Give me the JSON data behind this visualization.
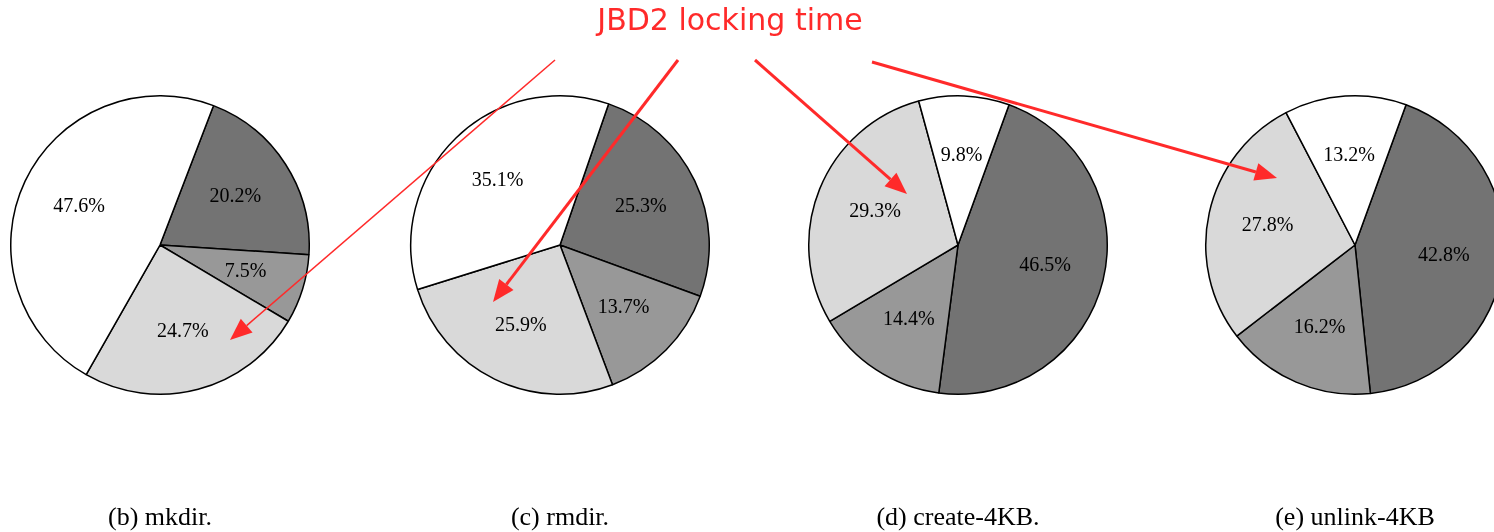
{
  "chart_data": [
    {
      "type": "pie",
      "title": "(b) mkdir.",
      "categories": [
        null,
        null,
        null,
        null
      ],
      "values": [
        20.2,
        7.5,
        24.7,
        47.6
      ],
      "colors": [
        "#737373",
        "#989898",
        "#d9d9d9",
        "#ffffff"
      ],
      "value_labels": [
        "20.2%",
        "7.5%",
        "24.7%",
        "47.6%"
      ],
      "annotations": [
        "JBD2 locking time"
      ]
    },
    {
      "type": "pie",
      "title": "(c) rmdir.",
      "categories": [
        null,
        null,
        null,
        null
      ],
      "values": [
        25.3,
        13.7,
        25.9,
        35.1
      ],
      "colors": [
        "#737373",
        "#989898",
        "#d9d9d9",
        "#ffffff"
      ],
      "value_labels": [
        "25.3%",
        "13.7%",
        "25.9%",
        "35.1%"
      ]
    },
    {
      "type": "pie",
      "title": "(d) create-4KB.",
      "categories": [
        null,
        null,
        null,
        null
      ],
      "values": [
        46.5,
        14.4,
        29.3,
        9.8
      ],
      "colors": [
        "#737373",
        "#989898",
        "#d9d9d9",
        "#ffffff"
      ],
      "value_labels": [
        "46.5%",
        "14.4%",
        "29.3%",
        "9.8%"
      ]
    },
    {
      "type": "pie",
      "title": "(e) unlink-4KB",
      "categories": [
        null,
        null,
        null,
        null
      ],
      "values": [
        42.8,
        16.2,
        27.8,
        13.2
      ],
      "colors": [
        "#737373",
        "#989898",
        "#d9d9d9",
        "#ffffff"
      ],
      "value_labels": [
        "42.8%",
        "16.2%",
        "27.8%",
        "13.2%"
      ]
    }
  ]
}
